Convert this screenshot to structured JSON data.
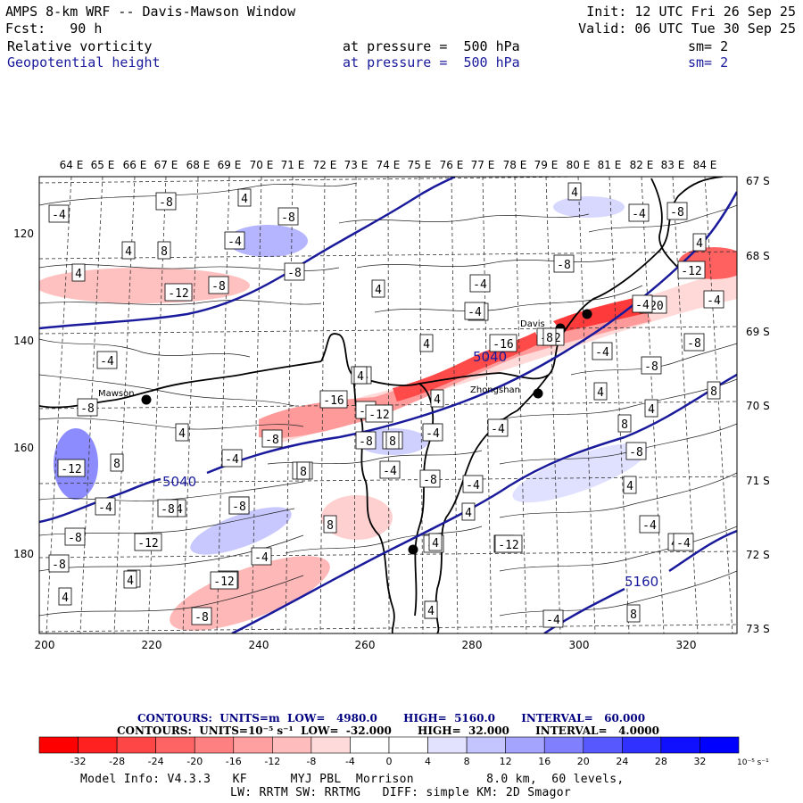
{
  "header": {
    "title": "AMPS 8-km WRF -- Davis-Mawson Window",
    "init": "Init: 12 UTC Fri 26 Sep 25",
    "fcst": "Fcst:   90 h",
    "valid": "Valid: 06 UTC Tue 30 Sep 25",
    "field1": {
      "name": "Relative vorticity",
      "level": "at pressure =  500 hPa",
      "sm": "sm= 2"
    },
    "field2": {
      "name": "Geopotential height",
      "level": "at pressure =  500 hPa",
      "sm": "sm= 2"
    }
  },
  "map": {
    "top_lon_labels": [
      "64 E",
      "65 E",
      "66 E",
      "67 E",
      "68 E",
      "69 E",
      "70 E",
      "71 E",
      "72 E",
      "73 E",
      "74 E",
      "75 E",
      "76 E",
      "77 E",
      "78 E",
      "79 E",
      "80 E",
      "81 E",
      "82 E",
      "83 E",
      "84 E"
    ],
    "right_lat_labels": [
      "67 S",
      "68 S",
      "69 S",
      "70 S",
      "71 S",
      "72 S",
      "73 S"
    ],
    "left_y_labels": [
      "120",
      "140",
      "160",
      "180"
    ],
    "bottom_x_labels": [
      "200",
      "220",
      "240",
      "260",
      "280",
      "300",
      "320"
    ],
    "stations": [
      "Mawson",
      "Davis",
      "Zhongshan"
    ],
    "height_labels": [
      "5040",
      "5040",
      "5160"
    ],
    "vort_labels": [
      "-4",
      "-8",
      "4",
      "-8",
      "4",
      "-4",
      "-8",
      "4",
      "8",
      "-4",
      "4",
      "4",
      "-8",
      "-12",
      "-8",
      "4",
      "-4",
      "-8",
      "-4",
      "-12",
      "-4",
      "-20",
      "-4",
      "4",
      "-4",
      "-4",
      "-16",
      "-12",
      "-8",
      "-8",
      "-4",
      "4",
      "-4",
      "4",
      "-16",
      "-12",
      "-4",
      "-8",
      "4",
      "8",
      "-8",
      "-4",
      "-8",
      "-8",
      "4",
      "12",
      "8",
      "8",
      "-12",
      "-8",
      "-4",
      "-4",
      "-8",
      "4",
      "-4",
      "4",
      "-4",
      "-4",
      "8",
      "-4",
      "-8",
      "-12",
      "-8",
      "-4",
      "-4",
      "-8",
      "4",
      "-4",
      "4",
      "4",
      "4",
      "-4",
      "8",
      "4",
      "8",
      "-4",
      "-12",
      "4",
      "4",
      "-8",
      "-8",
      "8",
      "-8",
      "4",
      "8",
      "8",
      "8",
      "-4",
      "-12",
      "-4"
    ],
    "colors": {
      "height_contour": "#1a1a9c",
      "coast": "#000000",
      "station": "#000000"
    }
  },
  "colorbar": {
    "line1": "CONTOURS:  UNITS=m  LOW=   4980.0       HIGH=  5160.0       INTERVAL=   60.000",
    "line2": "CONTOURS:  UNITS=10⁻⁵ s⁻¹  LOW=  -32.000       HIGH=  32.000       INTERVAL=   4.0000",
    "ticks": [
      "-32",
      "-28",
      "-24",
      "-20",
      "-16",
      "-12",
      "-8",
      "-4",
      "0",
      "4",
      "8",
      "12",
      "16",
      "20",
      "24",
      "28",
      "32"
    ],
    "unit": "10⁻⁵ s⁻¹",
    "colors": [
      "#ff0000",
      "#ff3030",
      "#ff5454",
      "#ff7474",
      "#ff9494",
      "#ffb0b0",
      "#ffcccc",
      "#ffe6e6",
      "#ffffff",
      "#ffffff",
      "#e6e6ff",
      "#c8c8ff",
      "#a8a8ff",
      "#8484ff",
      "#5c5cff",
      "#3434ff",
      "#0a0aff"
    ]
  },
  "footer": {
    "line1": "Model Info: V4.3.3   KF      MYJ PBL  Morrison          8.0 km,  60 levels,",
    "line2": "LW: RRTM SW: RRTMG   DIFF: simple KM: 2D Smagor"
  }
}
